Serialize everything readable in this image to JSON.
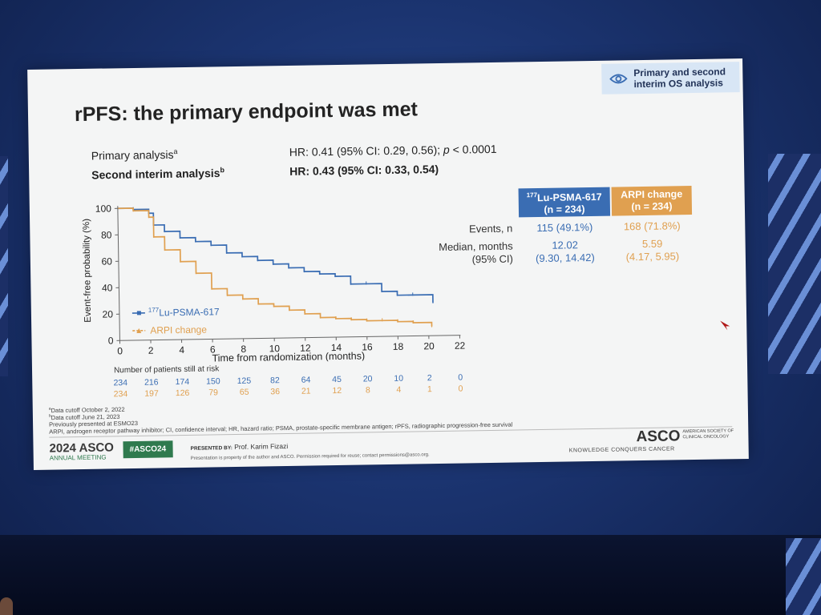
{
  "badge": {
    "icon": "eye-icon",
    "text_line1": "Primary and second",
    "text_line2": "interim OS analysis"
  },
  "title": "rPFS: the primary endpoint was met",
  "hr": {
    "primary_label": "Primary analysis",
    "primary_sup": "a",
    "primary_value_pre": "HR: 0.41 (95% CI: 0.29, 0.56); ",
    "primary_p": "p",
    "primary_value_post": " < 0.0001",
    "second_label": "Second interim analysis",
    "second_sup": "b",
    "second_value": "HR: 0.43 (95% CI: 0.33, 0.54)"
  },
  "table": {
    "col1_sup": "177",
    "col1_name": "Lu-PSMA-617",
    "col1_n": "(n = 234)",
    "col2_name": "ARPI change",
    "col2_n": "(n = 234)",
    "events_label": "Events, n",
    "events_lu": "115 (49.1%)",
    "events_arpi": "168 (71.8%)",
    "median_label1": "Median, months",
    "median_label2": "(95% CI)",
    "median_lu": "12.02",
    "median_lu_ci": "(9.30, 14.42)",
    "median_arpi": "5.59",
    "median_arpi_ci": "(4.17, 5.95)",
    "colors": {
      "lu": "#3a6db3",
      "arpi": "#e0a050"
    }
  },
  "chart_data": {
    "type": "line",
    "xlabel": "Time from randomization (months)",
    "ylabel": "Event-free probability (%)",
    "xlim": [
      0,
      22
    ],
    "ylim": [
      0,
      100
    ],
    "x_ticks": [
      "0",
      "2",
      "4",
      "6",
      "8",
      "10",
      "12",
      "14",
      "16",
      "18",
      "20",
      "22"
    ],
    "y_ticks": [
      "0",
      "20",
      "40",
      "60",
      "80",
      "100"
    ],
    "legend": {
      "placement": "bottom-left",
      "lu_sup": "177",
      "lu_name": "Lu-PSMA-617",
      "arpi_name": "ARPI change"
    },
    "series": [
      {
        "name": "177Lu-PSMA-617",
        "color": "#3a6db3",
        "x": [
          0,
          1,
          2,
          2.3,
          3,
          4,
          5,
          6,
          7,
          8,
          9,
          10,
          11,
          12,
          13,
          14,
          15,
          16,
          17,
          18,
          19,
          20.3
        ],
        "y": [
          100,
          99,
          96,
          87,
          82,
          77,
          74,
          71,
          65,
          62,
          59,
          56,
          53,
          50,
          48,
          46,
          40,
          40,
          34,
          31,
          31,
          25
        ]
      },
      {
        "name": "ARPI change",
        "color": "#e0a050",
        "x": [
          0,
          1,
          2,
          2.3,
          3,
          4,
          5,
          6,
          7,
          8,
          9,
          10,
          11,
          12,
          13,
          14,
          15,
          16,
          17,
          18,
          19,
          20.2
        ],
        "y": [
          100,
          98,
          93,
          78,
          68,
          59,
          50,
          38,
          33,
          30,
          26,
          24,
          21,
          18,
          15,
          14,
          13,
          12,
          12,
          11,
          10,
          7
        ]
      }
    ]
  },
  "risk": {
    "label": "Number of patients still at risk",
    "lu": [
      "234",
      "216",
      "174",
      "150",
      "125",
      "82",
      "64",
      "45",
      "20",
      "10",
      "2",
      "0"
    ],
    "arpi": [
      "234",
      "197",
      "126",
      "79",
      "65",
      "36",
      "21",
      "12",
      "8",
      "4",
      "1",
      "0"
    ]
  },
  "footnotes": {
    "a": "Data cutoff October 2, 2022",
    "b": "Data cutoff June 21, 2023",
    "c": "Previously presented at ESMO23",
    "d": "ARPI, androgen receptor pathway inhibitor; CI, confidence interval; HR, hazard ratio; PSMA, prostate-specific membrane antigen; rPFS, radiographic progression-free survival",
    "sup_a": "a",
    "sup_b": "b"
  },
  "footer": {
    "year_asco": "2024 ASCO",
    "annual": "ANNUAL MEETING",
    "hashtag": "#ASCO24",
    "presented_by": "PRESENTED BY:",
    "presenter": "Prof. Karim Fizazi",
    "disclaimer": "Presentation is property of the author and ASCO. Permission required for reuse; contact permissions@asco.org.",
    "asco": "ASCO",
    "asco_side": "AMERICAN SOCIETY OF CLINICAL ONCOLOGY",
    "asco_tag": "KNOWLEDGE CONQUERS CANCER"
  }
}
